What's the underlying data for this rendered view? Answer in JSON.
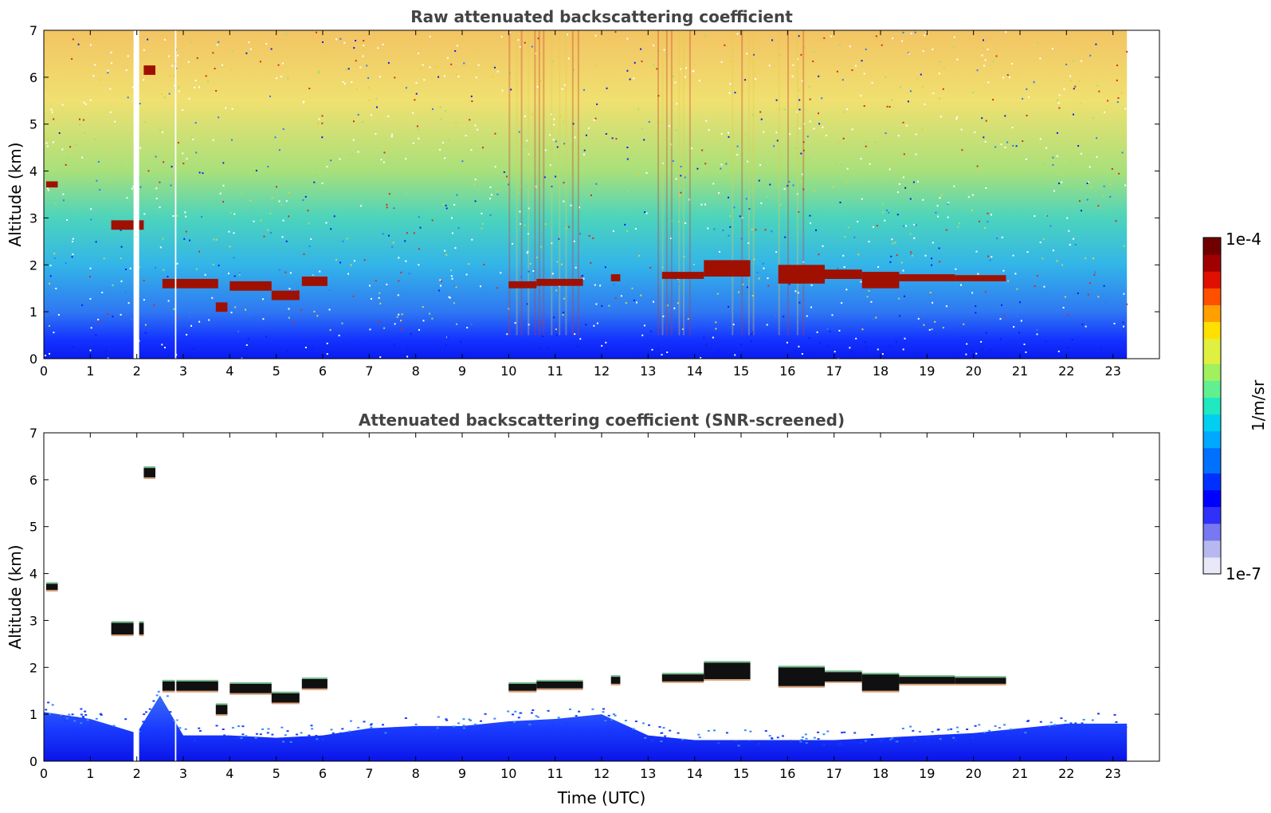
{
  "chart_data": [
    {
      "type": "heatmap",
      "title": "Raw attenuated backscattering coefficient",
      "xlabel": "",
      "ylabel": "Altitude (km)",
      "xlim": [
        0,
        24
      ],
      "ylim": [
        0,
        7
      ],
      "x_ticks": [
        "0",
        "1",
        "2",
        "3",
        "4",
        "5",
        "6",
        "7",
        "8",
        "9",
        "10",
        "11",
        "12",
        "13",
        "14",
        "15",
        "16",
        "17",
        "18",
        "19",
        "20",
        "21",
        "22",
        "23"
      ],
      "y_ticks": [
        "0",
        "1",
        "2",
        "3",
        "4",
        "5",
        "6",
        "7"
      ],
      "data_extent_x": [
        0,
        23.3
      ],
      "data_gaps_x": [
        [
          1.93,
          2.05
        ],
        [
          2.82,
          2.85
        ]
      ],
      "background_gradient": [
        {
          "alt": 0.0,
          "color": "#0a1cf0"
        },
        {
          "alt": 0.4,
          "color": "#1432ff"
        },
        {
          "alt": 1.0,
          "color": "#2f78f2"
        },
        {
          "alt": 2.0,
          "color": "#33b5e8"
        },
        {
          "alt": 3.0,
          "color": "#4cd4bc"
        },
        {
          "alt": 4.0,
          "color": "#a8e07a"
        },
        {
          "alt": 5.5,
          "color": "#f0e070"
        },
        {
          "alt": 7.0,
          "color": "#f2c463"
        }
      ],
      "noisy_columns_x": [
        [
          10.0,
          11.6
        ],
        [
          13.2,
          14.0
        ],
        [
          14.8,
          15.3
        ],
        [
          15.8,
          16.4
        ]
      ],
      "cloud_layers": [
        {
          "x": [
            0.05,
            0.3
          ],
          "alt": [
            3.65,
            3.78
          ]
        },
        {
          "x": [
            1.45,
            2.15
          ],
          "alt": [
            2.75,
            2.95
          ]
        },
        {
          "x": [
            2.15,
            2.4
          ],
          "alt": [
            6.05,
            6.25
          ]
        },
        {
          "x": [
            2.55,
            3.75
          ],
          "alt": [
            1.5,
            1.7
          ]
        },
        {
          "x": [
            3.7,
            3.95
          ],
          "alt": [
            1.0,
            1.2
          ]
        },
        {
          "x": [
            4.0,
            4.9
          ],
          "alt": [
            1.45,
            1.65
          ]
        },
        {
          "x": [
            4.9,
            5.5
          ],
          "alt": [
            1.25,
            1.45
          ]
        },
        {
          "x": [
            5.55,
            6.1
          ],
          "alt": [
            1.55,
            1.75
          ]
        },
        {
          "x": [
            10.0,
            10.6
          ],
          "alt": [
            1.5,
            1.65
          ]
        },
        {
          "x": [
            10.6,
            11.6
          ],
          "alt": [
            1.55,
            1.7
          ]
        },
        {
          "x": [
            12.2,
            12.4
          ],
          "alt": [
            1.65,
            1.8
          ]
        },
        {
          "x": [
            13.3,
            14.2
          ],
          "alt": [
            1.7,
            1.85
          ]
        },
        {
          "x": [
            14.2,
            15.2
          ],
          "alt": [
            1.75,
            2.1
          ]
        },
        {
          "x": [
            15.8,
            16.8
          ],
          "alt": [
            1.6,
            2.0
          ]
        },
        {
          "x": [
            16.8,
            17.6
          ],
          "alt": [
            1.7,
            1.9
          ]
        },
        {
          "x": [
            17.6,
            18.4
          ],
          "alt": [
            1.5,
            1.85
          ]
        },
        {
          "x": [
            18.4,
            19.6
          ],
          "alt": [
            1.65,
            1.8
          ]
        },
        {
          "x": [
            19.6,
            20.7
          ],
          "alt": [
            1.65,
            1.78
          ]
        }
      ]
    },
    {
      "type": "heatmap",
      "title": "Attenuated backscattering coefficient (SNR-screened)",
      "xlabel": "Time (UTC)",
      "ylabel": "Altitude (km)",
      "xlim": [
        0,
        24
      ],
      "ylim": [
        0,
        7
      ],
      "x_ticks": [
        "0",
        "1",
        "2",
        "3",
        "4",
        "5",
        "6",
        "7",
        "8",
        "9",
        "10",
        "11",
        "12",
        "13",
        "14",
        "15",
        "16",
        "17",
        "18",
        "19",
        "20",
        "21",
        "22",
        "23"
      ],
      "y_ticks": [
        "0",
        "1",
        "2",
        "3",
        "4",
        "5",
        "6",
        "7"
      ],
      "data_extent_x": [
        0,
        23.3
      ],
      "data_gaps_x": [
        [
          1.93,
          2.05
        ],
        [
          2.82,
          2.85
        ]
      ],
      "boundary_layer_top_km": [
        [
          0,
          1.05
        ],
        [
          1,
          0.9
        ],
        [
          2,
          0.6
        ],
        [
          2.5,
          1.4
        ],
        [
          3,
          0.55
        ],
        [
          4,
          0.55
        ],
        [
          5,
          0.5
        ],
        [
          6,
          0.55
        ],
        [
          7,
          0.7
        ],
        [
          8,
          0.75
        ],
        [
          9,
          0.75
        ],
        [
          10,
          0.85
        ],
        [
          11,
          0.9
        ],
        [
          12,
          1.0
        ],
        [
          13,
          0.55
        ],
        [
          14,
          0.45
        ],
        [
          15,
          0.45
        ],
        [
          16,
          0.45
        ],
        [
          17,
          0.45
        ],
        [
          18,
          0.5
        ],
        [
          19,
          0.55
        ],
        [
          20,
          0.6
        ],
        [
          21,
          0.7
        ],
        [
          22,
          0.8
        ],
        [
          23.3,
          0.8
        ]
      ],
      "cloud_layers": [
        {
          "x": [
            0.05,
            0.3
          ],
          "alt": [
            3.65,
            3.78
          ]
        },
        {
          "x": [
            1.45,
            2.15
          ],
          "alt": [
            2.7,
            2.95
          ]
        },
        {
          "x": [
            2.15,
            2.4
          ],
          "alt": [
            6.05,
            6.25
          ]
        },
        {
          "x": [
            2.55,
            3.75
          ],
          "alt": [
            1.5,
            1.7
          ]
        },
        {
          "x": [
            3.7,
            3.95
          ],
          "alt": [
            1.0,
            1.2
          ]
        },
        {
          "x": [
            4.0,
            4.9
          ],
          "alt": [
            1.45,
            1.65
          ]
        },
        {
          "x": [
            4.9,
            5.5
          ],
          "alt": [
            1.25,
            1.45
          ]
        },
        {
          "x": [
            5.55,
            6.1
          ],
          "alt": [
            1.55,
            1.75
          ]
        },
        {
          "x": [
            10.0,
            10.6
          ],
          "alt": [
            1.5,
            1.65
          ]
        },
        {
          "x": [
            10.6,
            11.6
          ],
          "alt": [
            1.55,
            1.7
          ]
        },
        {
          "x": [
            12.2,
            12.4
          ],
          "alt": [
            1.65,
            1.8
          ]
        },
        {
          "x": [
            13.3,
            14.2
          ],
          "alt": [
            1.7,
            1.85
          ]
        },
        {
          "x": [
            14.2,
            15.2
          ],
          "alt": [
            1.75,
            2.1
          ]
        },
        {
          "x": [
            15.8,
            16.8
          ],
          "alt": [
            1.6,
            2.0
          ]
        },
        {
          "x": [
            16.8,
            17.6
          ],
          "alt": [
            1.7,
            1.9
          ]
        },
        {
          "x": [
            17.6,
            18.4
          ],
          "alt": [
            1.5,
            1.85
          ]
        },
        {
          "x": [
            18.4,
            19.6
          ],
          "alt": [
            1.65,
            1.8
          ]
        },
        {
          "x": [
            19.6,
            20.7
          ],
          "alt": [
            1.65,
            1.78
          ]
        }
      ]
    }
  ],
  "colorbar": {
    "label": "1/m/sr",
    "max_label": "1e-4",
    "min_label": "1e-7",
    "scale": "log",
    "range": [
      1e-07,
      0.0001
    ],
    "colors": [
      "#e8e8f8",
      "#b8b8f0",
      "#7878f0",
      "#3030f8",
      "#0000ff",
      "#0030ff",
      "#0070ff",
      "#00a8ff",
      "#00d0f0",
      "#20e8c0",
      "#60f090",
      "#a0f060",
      "#e0f040",
      "#ffe000",
      "#ffa000",
      "#ff5000",
      "#e01000",
      "#a00000",
      "#700000"
    ]
  }
}
